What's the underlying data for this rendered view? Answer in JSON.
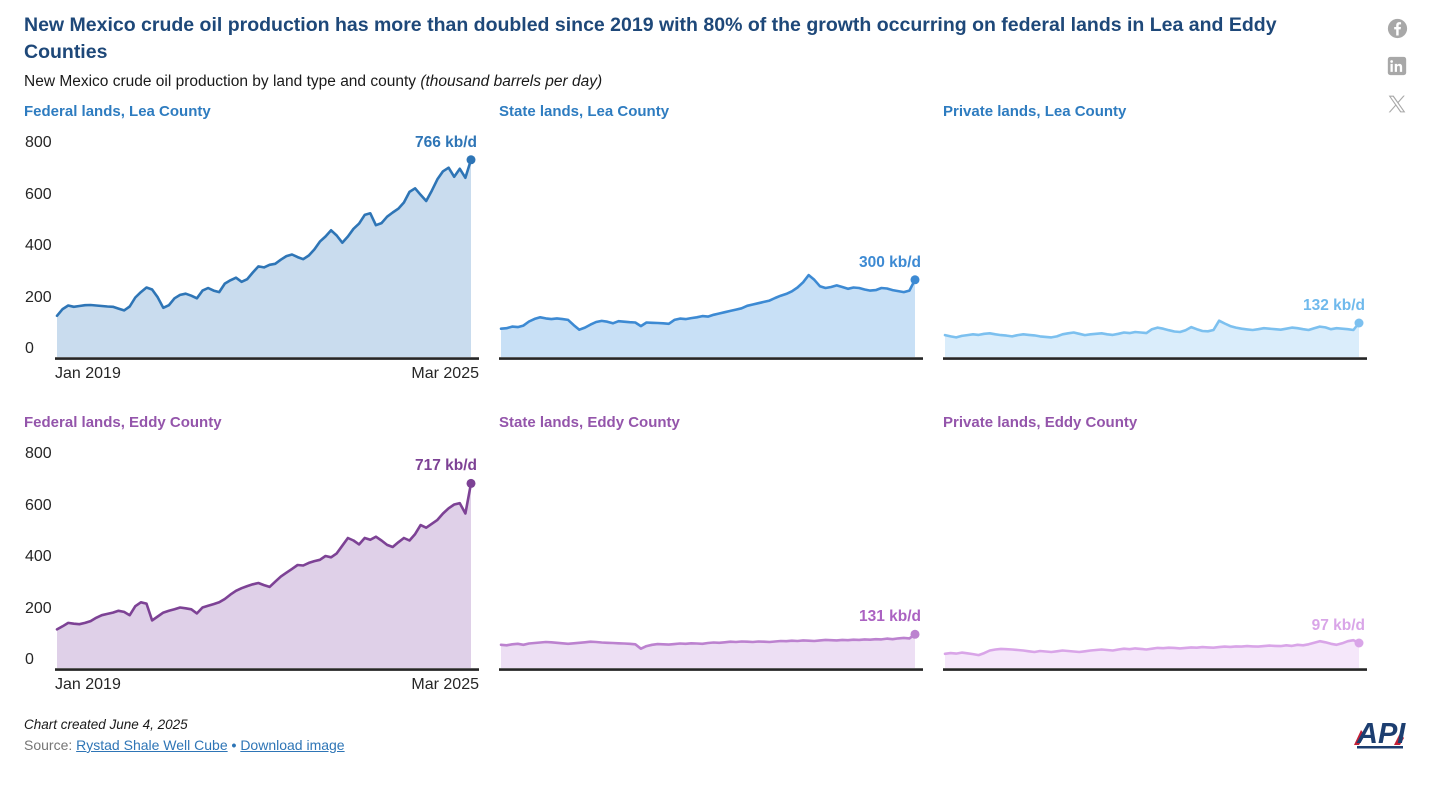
{
  "header": {
    "title": "New Mexico crude oil production has more than doubled since 2019 with 80% of the growth occurring on federal lands in Lea and Eddy Counties",
    "subtitle_text": "New Mexico crude oil production by land type and county ",
    "subtitle_unit": "(thousand barrels per day)"
  },
  "social": {
    "facebook_label": "f",
    "linkedin_label": "in",
    "x_label": "X",
    "icon_color": "#a8a8a8"
  },
  "colors": {
    "title_navy": "#1e4879",
    "row1_title": "#2e7cc0",
    "row2_title": "#9455ab",
    "axis": "#262626",
    "link_blue": "#2e75b6"
  },
  "chart_data": {
    "type": "area",
    "x_start_label": "Jan 2019",
    "x_end_label": "Mar 2025",
    "y_ticks": [
      0,
      200,
      400,
      600,
      800
    ],
    "ylim": [
      0,
      800
    ],
    "grid": false,
    "panels": [
      {
        "id": "federal-lea",
        "row": 1,
        "title": "Federal lands, Lea County",
        "title_color": "#2e7cc0",
        "end_label": "766 kb/d",
        "end_value": 766,
        "line_color": "#2e75b6",
        "fill_color": "#c9dcee",
        "label_color": "#2e75b6",
        "show_y_axis": true,
        "show_x_labels": true,
        "values": [
          160,
          186,
          200,
          195,
          198,
          201,
          202,
          200,
          198,
          196,
          195,
          188,
          181,
          196,
          231,
          252,
          270,
          262,
          232,
          191,
          201,
          228,
          241,
          246,
          238,
          228,
          258,
          268,
          258,
          252,
          285,
          298,
          308,
          292,
          302,
          328,
          352,
          348,
          358,
          362,
          378,
          392,
          398,
          388,
          380,
          394,
          418,
          448,
          468,
          492,
          472,
          444,
          468,
          498,
          518,
          552,
          558,
          512,
          520,
          545,
          561,
          576,
          600,
          641,
          655,
          630,
          606,
          646,
          690,
          721,
          735,
          700,
          731,
          696,
          766
        ]
      },
      {
        "id": "state-lea",
        "row": 1,
        "title": "State lands, Lea County",
        "title_color": "#2e7cc0",
        "end_label": "300 kb/d",
        "end_value": 300,
        "line_color": "#3d8ad3",
        "fill_color": "#c8e0f6",
        "label_color": "#3d8ad3",
        "show_y_axis": false,
        "show_x_labels": false,
        "values": [
          110,
          112,
          118,
          116,
          122,
          138,
          148,
          154,
          150,
          147,
          150,
          147,
          144,
          124,
          106,
          114,
          126,
          136,
          140,
          137,
          131,
          139,
          137,
          135,
          134,
          120,
          134,
          133,
          132,
          131,
          129,
          144,
          149,
          147,
          151,
          154,
          159,
          157,
          164,
          169,
          174,
          179,
          184,
          189,
          199,
          204,
          209,
          214,
          219,
          229,
          238,
          245,
          255,
          270,
          290,
          318,
          300,
          275,
          268,
          272,
          278,
          272,
          265,
          270,
          268,
          262,
          258,
          260,
          268,
          266,
          260,
          256,
          252,
          258,
          300
        ]
      },
      {
        "id": "private-lea",
        "row": 1,
        "title": "Private lands, Lea County",
        "title_color": "#2e7cc0",
        "end_label": "132 kb/d",
        "end_value": 132,
        "line_color": "#7cc0ef",
        "fill_color": "#daedfb",
        "label_color": "#6fb9ec",
        "show_y_axis": false,
        "show_x_labels": false,
        "values": [
          85,
          80,
          76,
          82,
          85,
          88,
          86,
          90,
          92,
          88,
          85,
          83,
          80,
          85,
          88,
          86,
          84,
          80,
          78,
          76,
          80,
          88,
          92,
          95,
          90,
          85,
          88,
          90,
          92,
          88,
          86,
          90,
          95,
          93,
          97,
          95,
          93,
          108,
          114,
          110,
          104,
          99,
          97,
          104,
          116,
          108,
          101,
          100,
          105,
          141,
          130,
          120,
          114,
          110,
          107,
          105,
          108,
          112,
          110,
          108,
          106,
          110,
          114,
          112,
          108,
          105,
          112,
          118,
          115,
          108,
          112,
          110,
          108,
          105,
          132
        ]
      },
      {
        "id": "federal-eddy",
        "row": 2,
        "title": "Federal lands, Eddy County",
        "title_color": "#9455ab",
        "end_label": "717 kb/d",
        "end_value": 717,
        "line_color": "#7d4295",
        "fill_color": "#dfd0e8",
        "label_color": "#7d4295",
        "show_y_axis": true,
        "show_x_labels": true,
        "values": [
          150,
          162,
          175,
          172,
          170,
          175,
          182,
          195,
          205,
          210,
          215,
          222,
          218,
          205,
          240,
          255,
          250,
          185,
          200,
          215,
          222,
          228,
          235,
          232,
          228,
          212,
          235,
          242,
          248,
          255,
          268,
          285,
          300,
          310,
          318,
          325,
          330,
          322,
          315,
          335,
          355,
          370,
          385,
          400,
          398,
          408,
          415,
          420,
          435,
          430,
          445,
          475,
          505,
          495,
          480,
          505,
          498,
          510,
          495,
          478,
          470,
          488,
          505,
          495,
          520,
          555,
          545,
          560,
          575,
          600,
          620,
          635,
          640,
          600,
          717
        ]
      },
      {
        "id": "state-eddy",
        "row": 2,
        "title": "State lands, Eddy County",
        "title_color": "#9455ab",
        "end_label": "131 kb/d",
        "end_value": 131,
        "line_color": "#bc82cf",
        "fill_color": "#eddff4",
        "label_color": "#ab62c2",
        "show_y_axis": false,
        "show_x_labels": false,
        "values": [
          90,
          88,
          92,
          94,
          90,
          95,
          97,
          99,
          101,
          100,
          98,
          96,
          94,
          96,
          98,
          100,
          102,
          101,
          99,
          98,
          97,
          96,
          95,
          94,
          92,
          75,
          85,
          90,
          93,
          92,
          91,
          93,
          95,
          94,
          96,
          95,
          94,
          97,
          99,
          98,
          100,
          102,
          101,
          103,
          102,
          101,
          103,
          102,
          101,
          103,
          105,
          104,
          106,
          105,
          107,
          106,
          105,
          107,
          109,
          108,
          107,
          109,
          108,
          110,
          109,
          111,
          110,
          112,
          111,
          114,
          112,
          115,
          117,
          115,
          131
        ]
      },
      {
        "id": "private-eddy",
        "row": 2,
        "title": "Private lands, Eddy County",
        "title_color": "#9455ab",
        "end_label": "97 kb/d",
        "end_value": 97,
        "line_color": "#d9a5e8",
        "fill_color": "#f5e7fa",
        "label_color": "#d9a5e8",
        "show_y_axis": false,
        "show_x_labels": false,
        "values": [
          55,
          58,
          56,
          60,
          57,
          54,
          50,
          58,
          68,
          72,
          74,
          73,
          72,
          70,
          68,
          65,
          62,
          66,
          64,
          62,
          65,
          68,
          66,
          64,
          62,
          65,
          68,
          70,
          72,
          70,
          68,
          72,
          75,
          73,
          76,
          74,
          72,
          75,
          78,
          77,
          79,
          78,
          76,
          78,
          80,
          79,
          81,
          80,
          79,
          81,
          83,
          82,
          84,
          83,
          85,
          84,
          83,
          85,
          87,
          86,
          85,
          88,
          86,
          90,
          88,
          92,
          98,
          104,
          100,
          94,
          90,
          96,
          104,
          108,
          97
        ]
      }
    ]
  },
  "footer": {
    "created": "Chart created June 4, 2025",
    "source_label": "Source:",
    "source_link": "Rystad Shale Well Cube",
    "separator": "•",
    "download_link": "Download image",
    "logo_text": "API"
  }
}
